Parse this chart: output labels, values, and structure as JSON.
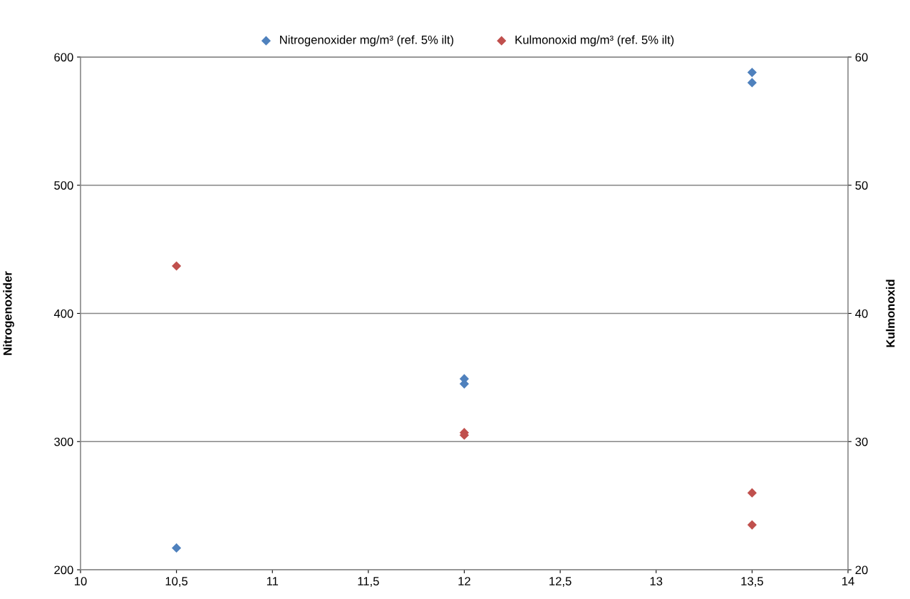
{
  "chart_data": {
    "type": "scatter",
    "ylabel": "Nitrogenoxider",
    "y2label": "Kulmonoxid",
    "xlim": [
      10,
      14
    ],
    "xticks": [
      10,
      {
        "value": 10.5,
        "label": "10,5"
      },
      11,
      {
        "value": 11.5,
        "label": "11,5"
      },
      12,
      {
        "value": 12.5,
        "label": "12,5"
      },
      13,
      {
        "value": 13.5,
        "label": "13,5"
      },
      14
    ],
    "ylim": [
      200,
      600
    ],
    "yticks": [
      200,
      300,
      400,
      500,
      600
    ],
    "y2lim": [
      20,
      60
    ],
    "y2ticks": [
      20,
      30,
      40,
      50,
      60
    ],
    "grid": "y",
    "legend": "top",
    "marker": "diamond",
    "series": [
      {
        "name": "Nitrogenoxider mg/m³ (ref. 5% ilt)",
        "color": "#4f81bd",
        "x": [
          10.5,
          12,
          12,
          13.5,
          13.5
        ],
        "values": [
          217,
          349,
          345,
          588,
          580
        ]
      },
      {
        "name": "Kulmonoxid mg/m³ (ref. 5% ilt)",
        "color": "#c0504d",
        "axis": "y2",
        "x": [
          10.5,
          12,
          12,
          13.5,
          13.5
        ],
        "values": [
          43.7,
          30.7,
          30.5,
          26.0,
          23.5
        ]
      }
    ]
  }
}
